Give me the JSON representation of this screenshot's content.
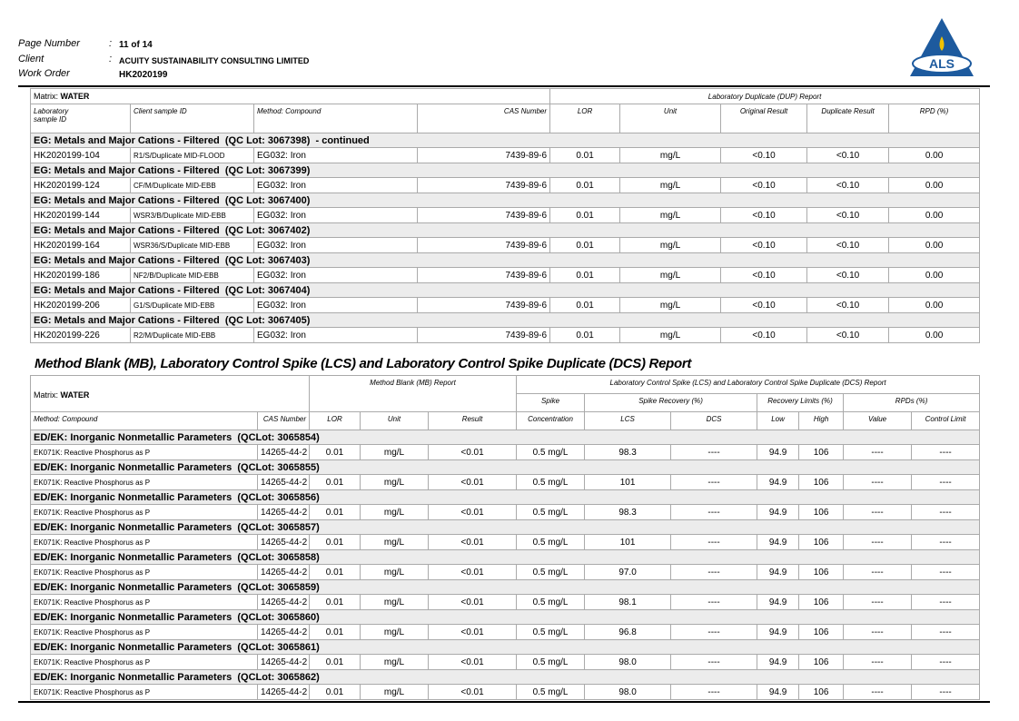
{
  "header": {
    "page_number_label": "Page Number",
    "page_number_sep": ":",
    "page_number": "11 of 14",
    "client_label": "Client",
    "client_sep": ":",
    "client": "ACUITY SUSTAINABILITY CONSULTING LIMITED",
    "work_order_label": "Work Order",
    "work_order": "HK2020199",
    "logo_text": "ALS"
  },
  "dup_table": {
    "matrix_label": "Matrix:",
    "matrix": "WATER",
    "report_title": "Laboratory Duplicate (DUP) Report",
    "columns": [
      [
        "Laboratory",
        "sample ID"
      ],
      [
        "Client sample ID"
      ],
      [
        "Method: Compound"
      ],
      [
        "CAS Number"
      ],
      [
        "LOR"
      ],
      [
        "Unit"
      ],
      [
        "Original Result"
      ],
      [
        "Duplicate Result"
      ],
      [
        "RPD (%)"
      ]
    ],
    "groups": [
      {
        "title": "EG: Metals and Major Cations - Filtered  (QC Lot: 3067398)  - continued",
        "rows": [
          [
            "HK2020199-104",
            "R1/S/Duplicate MID-FLOOD",
            "EG032: Iron",
            "7439-89-6",
            "0.01",
            "mg/L",
            "<0.10",
            "<0.10",
            "0.00"
          ]
        ]
      },
      {
        "title": "EG: Metals and Major Cations - Filtered  (QC Lot: 3067399)",
        "rows": [
          [
            "HK2020199-124",
            "CF/M/Duplicate MID-EBB",
            "EG032: Iron",
            "7439-89-6",
            "0.01",
            "mg/L",
            "<0.10",
            "<0.10",
            "0.00"
          ]
        ]
      },
      {
        "title": "EG: Metals and Major Cations - Filtered  (QC Lot: 3067400)",
        "rows": [
          [
            "HK2020199-144",
            "WSR3/B/Duplicate MID-EBB",
            "EG032: Iron",
            "7439-89-6",
            "0.01",
            "mg/L",
            "<0.10",
            "<0.10",
            "0.00"
          ]
        ]
      },
      {
        "title": "EG: Metals and Major Cations - Filtered  (QC Lot: 3067402)",
        "rows": [
          [
            "HK2020199-164",
            "WSR36/S/Duplicate MID-EBB",
            "EG032: Iron",
            "7439-89-6",
            "0.01",
            "mg/L",
            "<0.10",
            "<0.10",
            "0.00"
          ]
        ]
      },
      {
        "title": "EG: Metals and Major Cations - Filtered  (QC Lot: 3067403)",
        "rows": [
          [
            "HK2020199-186",
            "NF2/B/Duplicate MID-EBB",
            "EG032: Iron",
            "7439-89-6",
            "0.01",
            "mg/L",
            "<0.10",
            "<0.10",
            "0.00"
          ]
        ]
      },
      {
        "title": "EG: Metals and Major Cations - Filtered  (QC Lot: 3067404)",
        "rows": [
          [
            "HK2020199-206",
            "G1/S/Duplicate MID-EBB",
            "EG032: Iron",
            "7439-89-6",
            "0.01",
            "mg/L",
            "<0.10",
            "<0.10",
            "0.00"
          ]
        ]
      },
      {
        "title": "EG: Metals and Major Cations - Filtered  (QC Lot: 3067405)",
        "rows": [
          [
            "HK2020199-226",
            "R2/M/Duplicate MID-EBB",
            "EG032: Iron",
            "7439-89-6",
            "0.01",
            "mg/L",
            "<0.10",
            "<0.10",
            "0.00"
          ]
        ]
      }
    ]
  },
  "lcs_section": {
    "title": "Method Blank (MB), Laboratory Control Spike (LCS) and Laboratory Control Spike Duplicate (DCS) Report",
    "matrix_label": "Matrix:",
    "matrix": "WATER",
    "mb_title": "Method Blank (MB) Report",
    "lcs_title": "Laboratory Control Spike (LCS) and Laboratory Control Spike Duplicate (DCS) Report",
    "subheaders": [
      "Spike",
      "Spike Recovery (%)",
      "Recovery Limits (%)",
      "RPDs (%)"
    ],
    "columns": [
      "Method: Compound",
      "CAS Number",
      "LOR",
      "Unit",
      "Result",
      "Concentration",
      "LCS",
      "DCS",
      "Low",
      "High",
      "Value",
      "Control Limit"
    ],
    "groups": [
      {
        "title": "ED/EK: Inorganic Nonmetallic Parameters  (QCLot: 3065854)",
        "rows": [
          [
            "EK071K: Reactive Phosphorus as P",
            "14265-44-2",
            "0.01",
            "mg/L",
            "<0.01",
            "0.5 mg/L",
            "98.3",
            "----",
            "94.9",
            "106",
            "----",
            "----"
          ]
        ]
      },
      {
        "title": "ED/EK: Inorganic Nonmetallic Parameters  (QCLot: 3065855)",
        "rows": [
          [
            "EK071K: Reactive Phosphorus as P",
            "14265-44-2",
            "0.01",
            "mg/L",
            "<0.01",
            "0.5 mg/L",
            "101",
            "----",
            "94.9",
            "106",
            "----",
            "----"
          ]
        ]
      },
      {
        "title": "ED/EK: Inorganic Nonmetallic Parameters  (QCLot: 3065856)",
        "rows": [
          [
            "EK071K: Reactive Phosphorus as P",
            "14265-44-2",
            "0.01",
            "mg/L",
            "<0.01",
            "0.5 mg/L",
            "98.3",
            "----",
            "94.9",
            "106",
            "----",
            "----"
          ]
        ]
      },
      {
        "title": "ED/EK: Inorganic Nonmetallic Parameters  (QCLot: 3065857)",
        "rows": [
          [
            "EK071K: Reactive Phosphorus as P",
            "14265-44-2",
            "0.01",
            "mg/L",
            "<0.01",
            "0.5 mg/L",
            "101",
            "----",
            "94.9",
            "106",
            "----",
            "----"
          ]
        ]
      },
      {
        "title": "ED/EK: Inorganic Nonmetallic Parameters  (QCLot: 3065858)",
        "rows": [
          [
            "EK071K: Reactive Phosphorus as P",
            "14265-44-2",
            "0.01",
            "mg/L",
            "<0.01",
            "0.5 mg/L",
            "97.0",
            "----",
            "94.9",
            "106",
            "----",
            "----"
          ]
        ]
      },
      {
        "title": "ED/EK: Inorganic Nonmetallic Parameters  (QCLot: 3065859)",
        "rows": [
          [
            "EK071K: Reactive Phosphorus as P",
            "14265-44-2",
            "0.01",
            "mg/L",
            "<0.01",
            "0.5 mg/L",
            "98.1",
            "----",
            "94.9",
            "106",
            "----",
            "----"
          ]
        ]
      },
      {
        "title": "ED/EK: Inorganic Nonmetallic Parameters  (QCLot: 3065860)",
        "rows": [
          [
            "EK071K: Reactive Phosphorus as P",
            "14265-44-2",
            "0.01",
            "mg/L",
            "<0.01",
            "0.5 mg/L",
            "96.8",
            "----",
            "94.9",
            "106",
            "----",
            "----"
          ]
        ]
      },
      {
        "title": "ED/EK: Inorganic Nonmetallic Parameters  (QCLot: 3065861)",
        "rows": [
          [
            "EK071K: Reactive Phosphorus as P",
            "14265-44-2",
            "0.01",
            "mg/L",
            "<0.01",
            "0.5 mg/L",
            "98.0",
            "----",
            "94.9",
            "106",
            "----",
            "----"
          ]
        ]
      },
      {
        "title": "ED/EK: Inorganic Nonmetallic Parameters  (QCLot: 3065862)",
        "rows": [
          [
            "EK071K: Reactive Phosphorus as P",
            "14265-44-2",
            "0.01",
            "mg/L",
            "<0.01",
            "0.5 mg/L",
            "98.0",
            "----",
            "94.9",
            "106",
            "----",
            "----"
          ]
        ]
      }
    ]
  }
}
